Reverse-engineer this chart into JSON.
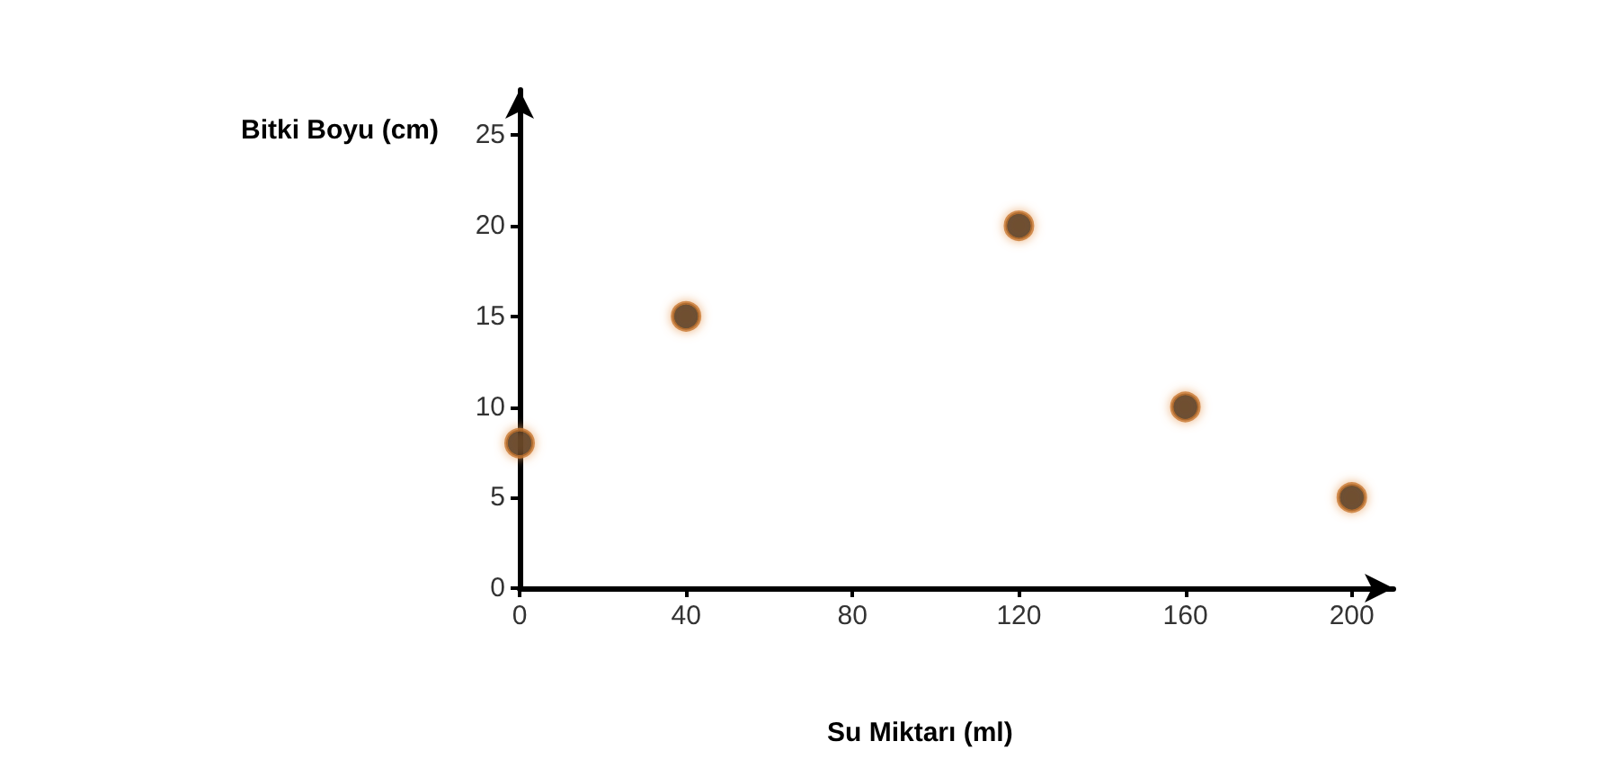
{
  "chart_data": {
    "type": "scatter",
    "xlabel": "Su Miktarı (ml)",
    "ylabel": "Bitki Boyu (cm)",
    "x": [
      0,
      40,
      120,
      160,
      200
    ],
    "series": [
      {
        "color": "#1a1208",
        "values": [
          8,
          15,
          20,
          10,
          5
        ]
      }
    ],
    "xlim": [
      0,
      210
    ],
    "xticks": [
      0,
      40,
      80,
      120,
      160,
      200
    ],
    "ylim": [
      0,
      27.5
    ],
    "yticks": [
      0,
      5,
      10,
      15,
      20,
      25
    ],
    "grid": false,
    "marker": "circle"
  }
}
